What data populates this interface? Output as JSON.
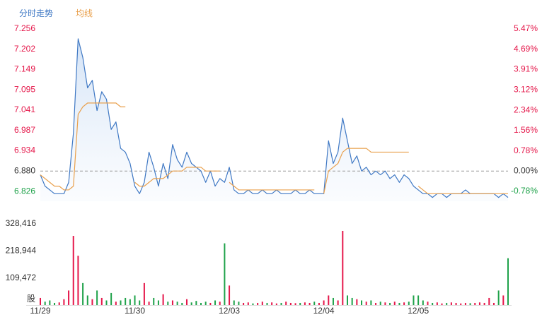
{
  "chart_data": [
    {
      "type": "line",
      "series": [
        {
          "name": "分时走势",
          "color": "#3f78c4",
          "values": [
            6.87,
            6.84,
            6.83,
            6.82,
            6.82,
            6.82,
            6.85,
            6.98,
            7.23,
            7.18,
            7.1,
            7.12,
            7.04,
            7.09,
            7.07,
            6.99,
            7.01,
            6.94,
            6.93,
            6.9,
            6.84,
            6.82,
            6.85,
            6.93,
            6.89,
            6.84,
            6.9,
            6.86,
            6.95,
            6.91,
            6.89,
            6.93,
            6.9,
            6.89,
            6.88,
            6.85,
            6.88,
            6.84,
            6.86,
            6.85,
            6.89,
            6.83,
            6.82,
            6.82,
            6.83,
            6.82,
            6.82,
            6.83,
            6.82,
            6.82,
            6.83,
            6.82,
            6.82,
            6.82,
            6.83,
            6.82,
            6.82,
            6.83,
            6.82,
            6.82,
            6.82,
            6.96,
            6.9,
            6.93,
            7.02,
            6.96,
            6.9,
            6.92,
            6.88,
            6.89,
            6.87,
            6.88,
            6.87,
            6.88,
            6.86,
            6.87,
            6.85,
            6.87,
            6.86,
            6.84,
            6.83,
            6.82,
            6.82,
            6.81,
            6.82,
            6.82,
            6.81,
            6.82,
            6.82,
            6.82,
            6.83,
            6.82,
            6.82,
            6.82,
            6.82,
            6.82,
            6.82,
            6.81,
            6.82,
            6.81
          ]
        },
        {
          "name": "均线",
          "color": "#e9a04c",
          "values": [
            6.87,
            6.86,
            6.85,
            6.84,
            6.84,
            6.83,
            6.83,
            6.84,
            7.03,
            7.05,
            7.06,
            7.06,
            7.06,
            7.06,
            7.06,
            7.06,
            7.06,
            7.05,
            7.05,
            null,
            6.85,
            6.84,
            6.84,
            6.85,
            6.86,
            6.86,
            6.86,
            6.87,
            6.88,
            6.88,
            6.88,
            6.89,
            6.89,
            6.89,
            6.89,
            6.88,
            6.88,
            6.88,
            6.88,
            null,
            6.85,
            6.84,
            6.83,
            6.83,
            6.83,
            6.83,
            6.83,
            6.83,
            6.83,
            6.83,
            6.83,
            6.83,
            6.83,
            6.83,
            6.83,
            6.83,
            6.83,
            6.83,
            6.83,
            null,
            6.82,
            6.88,
            6.89,
            6.9,
            6.93,
            6.94,
            6.94,
            6.94,
            6.94,
            6.94,
            6.93,
            6.93,
            6.93,
            6.93,
            6.93,
            6.93,
            6.93,
            6.93,
            6.93,
            null,
            6.84,
            6.83,
            6.82,
            6.82,
            6.82,
            6.82,
            6.82,
            6.82,
            6.82,
            6.82,
            6.82,
            6.82,
            6.82,
            6.82,
            6.82,
            6.82,
            6.82,
            6.82,
            6.82,
            6.82
          ]
        }
      ],
      "ylim": [
        6.8,
        7.256
      ],
      "yticks": [
        7.256,
        7.202,
        7.149,
        7.095,
        7.041,
        6.987,
        6.934,
        {
          "value": 6.88,
          "label": "6.880"
        },
        6.826
      ],
      "y2lim": [
        -1.16,
        5.47
      ],
      "y2ticks": [
        {
          "value": 5.47,
          "label": "5.47%"
        },
        {
          "value": 4.69,
          "label": "4.69%"
        },
        {
          "value": 3.91,
          "label": "3.91%"
        },
        {
          "value": 3.12,
          "label": "3.12%"
        },
        {
          "value": 2.34,
          "label": "2.34%"
        },
        {
          "value": 1.56,
          "label": "1.56%"
        },
        {
          "value": 0.78,
          "label": "0.78%"
        },
        {
          "value": 0,
          "label": "0.00%"
        },
        {
          "value": -0.78,
          "label": "-0.78%"
        }
      ],
      "reference_line": 6.88,
      "up_color": "#e5174a",
      "down_color": "#1fa24a",
      "flat_color": "#333333",
      "area": true
    },
    {
      "type": "bar",
      "ylabel": "股",
      "categories": [
        "11/29",
        null,
        null,
        null,
        null,
        null,
        null,
        null,
        null,
        null,
        null,
        null,
        null,
        null,
        null,
        null,
        null,
        null,
        null,
        null,
        "11/30",
        null,
        null,
        null,
        null,
        null,
        null,
        null,
        null,
        null,
        null,
        null,
        null,
        null,
        null,
        null,
        null,
        null,
        null,
        null,
        "12/03",
        null,
        null,
        null,
        null,
        null,
        null,
        null,
        null,
        null,
        null,
        null,
        null,
        null,
        null,
        null,
        null,
        null,
        null,
        null,
        "12/04",
        null,
        null,
        null,
        null,
        null,
        null,
        null,
        null,
        null,
        null,
        null,
        null,
        null,
        null,
        null,
        null,
        null,
        null,
        null,
        "12/05",
        null,
        null,
        null,
        null,
        null,
        null,
        null,
        null,
        null,
        null,
        null,
        null,
        null,
        null,
        null,
        null,
        null,
        null,
        null
      ],
      "values": [
        30000,
        15000,
        20000,
        10000,
        12000,
        25000,
        60000,
        280000,
        200000,
        90000,
        40000,
        25000,
        60000,
        30000,
        20000,
        50000,
        15000,
        20000,
        30000,
        25000,
        40000,
        20000,
        90000,
        15000,
        30000,
        20000,
        45000,
        15000,
        20000,
        15000,
        10000,
        25000,
        12000,
        18000,
        10000,
        15000,
        10000,
        20000,
        15000,
        250000,
        80000,
        20000,
        15000,
        10000,
        12000,
        8000,
        10000,
        15000,
        10000,
        12000,
        8000,
        10000,
        15000,
        10000,
        9000,
        10000,
        12000,
        10000,
        15000,
        10000,
        20000,
        40000,
        30000,
        20000,
        300000,
        40000,
        30000,
        25000,
        20000,
        15000,
        20000,
        10000,
        15000,
        12000,
        10000,
        15000,
        10000,
        12000,
        15000,
        40000,
        40000,
        20000,
        15000,
        10000,
        12000,
        8000,
        10000,
        12000,
        10000,
        8000,
        10000,
        9000,
        10000,
        12000,
        10000,
        30000,
        10000,
        60000,
        40000,
        190000
      ],
      "ylim": [
        0,
        328416
      ],
      "yticks": [
        {
          "value": 328416,
          "label": "328,416"
        },
        {
          "value": 218944,
          "label": "218,944"
        },
        {
          "value": 109472,
          "label": "109,472"
        }
      ],
      "up_color": "#e5174a",
      "down_color": "#1fa24a"
    }
  ]
}
